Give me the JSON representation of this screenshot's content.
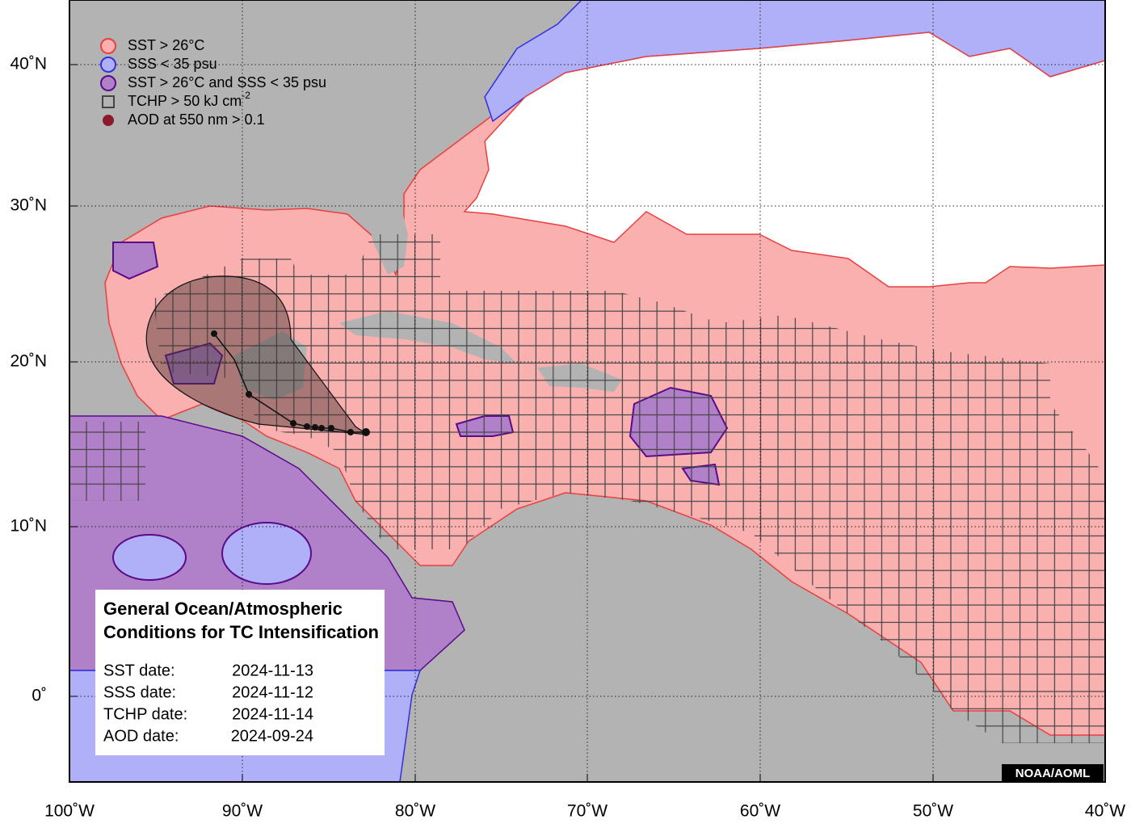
{
  "legend": [
    {
      "label": "SST > 26°C"
    },
    {
      "label": "SSS < 35 psu"
    },
    {
      "label": "SST > 26°C and SSS < 35 psu"
    },
    {
      "label": "TCHP > 50 kJ cm",
      "superscript": "-2"
    },
    {
      "label": "AOD at 550 nm > 0.1"
    }
  ],
  "axes": {
    "longitude_labels": [
      "100˚W",
      "90˚W",
      "80˚W",
      "70˚W",
      "60˚W",
      "50˚W",
      "40˚W"
    ],
    "latitude_labels": [
      "40˚N",
      "30˚N",
      "20˚N",
      "10˚N",
      "0˚"
    ]
  },
  "info_box": {
    "title_lines": [
      "General Ocean/Atmospheric",
      "Conditions for TC Intensification"
    ],
    "dates": [
      {
        "label": "SST date:",
        "value": "2024-11-13"
      },
      {
        "label": "SSS date:",
        "value": "2024-11-12"
      },
      {
        "label": "TCHP date:",
        "value": "2024-11-14"
      },
      {
        "label": "AOD date:",
        "value": "2024-09-24"
      }
    ]
  },
  "credit": "NOAA/AOML"
}
